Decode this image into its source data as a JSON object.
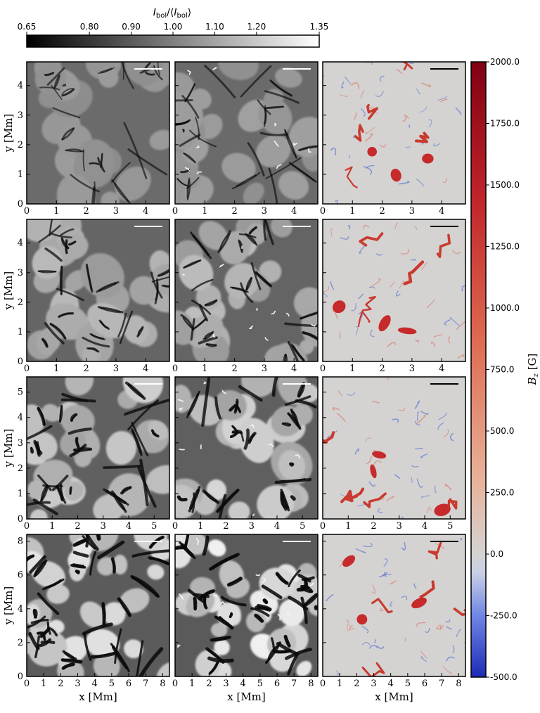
{
  "top_colorbar": {
    "title": "I_bol/⟨I_bol⟩",
    "title_parts": {
      "i1": "I",
      "s1": "bol",
      "mid": "/⟨",
      "i2": "I",
      "s2": "bol",
      "end": "⟩"
    },
    "range": [
      0.65,
      1.35
    ],
    "ticks": [
      "0.65",
      "0.80",
      "0.90",
      "1.00",
      "1.10",
      "1.20",
      "1.35"
    ],
    "tick_values": [
      0.65,
      0.8,
      0.9,
      1.0,
      1.1,
      1.2,
      1.35
    ],
    "colors": [
      "#000000",
      "#ffffff"
    ]
  },
  "right_colorbar": {
    "label_main": "B",
    "label_sub": "z",
    "label_unit": " [G]",
    "range": [
      -500,
      2000
    ],
    "ticks": [
      "2000.0",
      "1750.0",
      "1500.0",
      "1250.0",
      "1000.0",
      "750.0",
      "500.0",
      "250.0",
      "0.0",
      "-250.0",
      "-500.0"
    ],
    "tick_values": [
      2000,
      1750,
      1500,
      1250,
      1000,
      750,
      500,
      250,
      0,
      -250,
      -500
    ],
    "colors": [
      "#1c2bb5",
      "#6f86e4",
      "#c9cfe6",
      "#d4d3d2",
      "#e8b29a",
      "#de6a50",
      "#c0242a",
      "#800012"
    ]
  },
  "axes": {
    "xlabel": "x [Mm]",
    "ylabel": "y [Mm]"
  },
  "chart_data": [
    {
      "type": "heatmap",
      "row": 1,
      "extent_Mm": 4.8,
      "x_ticks": [
        0,
        1,
        2,
        3,
        4
      ],
      "y_ticks": [
        0,
        1,
        2,
        3,
        4
      ],
      "panels": [
        "intensity-low",
        "intensity-high",
        "bz"
      ]
    },
    {
      "type": "heatmap",
      "row": 2,
      "extent_Mm": 4.8,
      "x_ticks": [
        0,
        1,
        2,
        3,
        4
      ],
      "y_ticks": [
        0,
        1,
        2,
        3,
        4
      ],
      "panels": [
        "intensity-low",
        "intensity-high",
        "bz"
      ]
    },
    {
      "type": "heatmap",
      "row": 3,
      "extent_Mm": 5.6,
      "x_ticks": [
        0,
        1,
        2,
        3,
        4,
        5
      ],
      "y_ticks": [
        0,
        1,
        2,
        3,
        4,
        5
      ],
      "panels": [
        "intensity-low",
        "intensity-high",
        "bz"
      ]
    },
    {
      "type": "heatmap",
      "row": 4,
      "extent_Mm": 8.4,
      "x_ticks": [
        0,
        1,
        2,
        3,
        4,
        5,
        6,
        7,
        8
      ],
      "y_ticks": [
        0,
        2,
        4,
        6,
        8
      ],
      "panels": [
        "intensity-low",
        "intensity-high",
        "bz"
      ]
    }
  ]
}
